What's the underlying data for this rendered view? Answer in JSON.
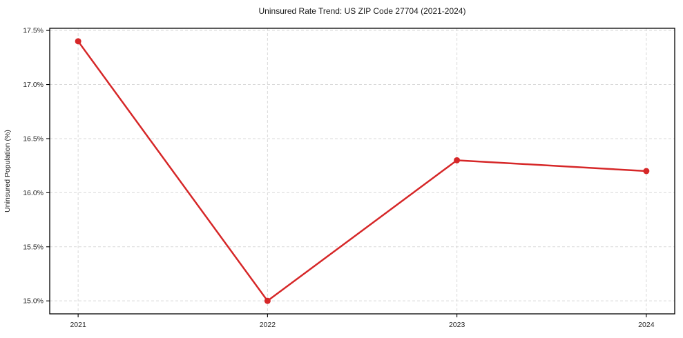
{
  "figure": {
    "background": "#ffffff"
  },
  "chart_data": {
    "type": "line",
    "title": "Uninsured Rate Trend: US ZIP Code 27704 (2021-2024)",
    "xlabel": "",
    "ylabel": "Uninsured Population (%)",
    "x": [
      2021,
      2022,
      2023,
      2024
    ],
    "x_tick_labels": [
      "2021",
      "2022",
      "2023",
      "2024"
    ],
    "values": [
      17.4,
      15.0,
      16.3,
      16.2
    ],
    "y_ticks": [
      15.0,
      15.5,
      16.0,
      16.5,
      17.0,
      17.5
    ],
    "y_tick_labels": [
      "15.0%",
      "15.5%",
      "16.0%",
      "16.5%",
      "17.0%",
      "17.5%"
    ],
    "xlim": [
      2020.85,
      2024.15
    ],
    "ylim": [
      14.88,
      17.52
    ],
    "grid": true,
    "grid_style": "dashed",
    "legend": "none",
    "line_color": "#d62728",
    "marker": "circle",
    "marker_color": "#d62728",
    "grid_color": "#d9d9d9",
    "spine_color": "#000000",
    "tick_color": "#000000",
    "text_color": "#1a1a1a"
  }
}
